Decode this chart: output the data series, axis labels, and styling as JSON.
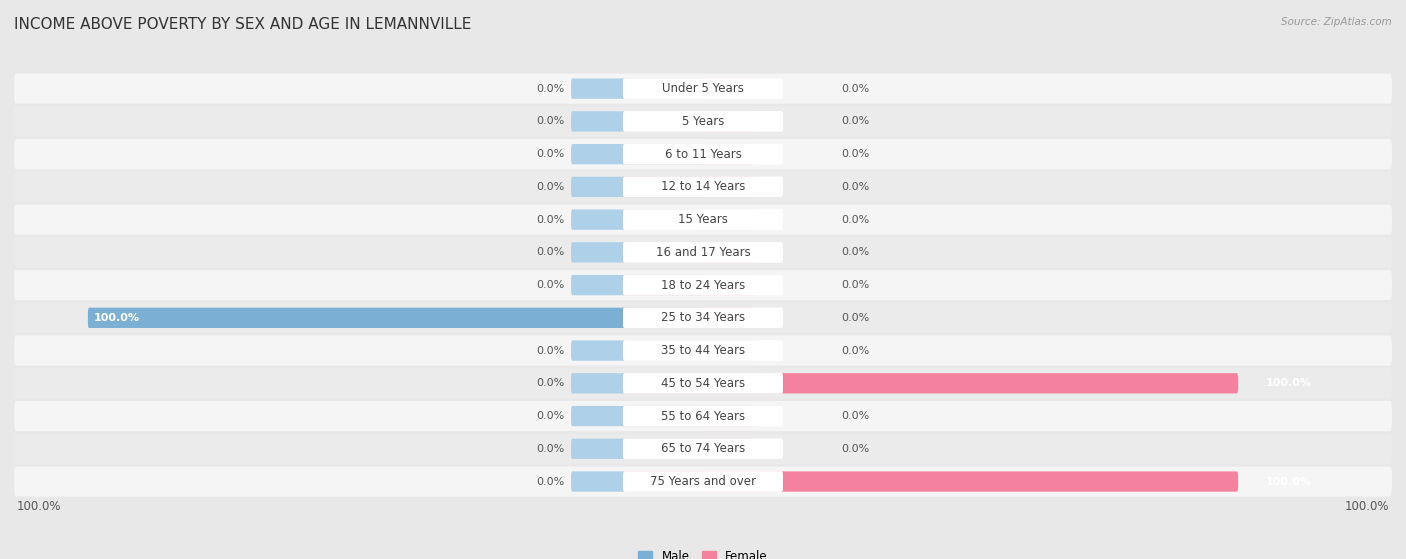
{
  "title": "INCOME ABOVE POVERTY BY SEX AND AGE IN LEMANNVILLE",
  "source": "Source: ZipAtlas.com",
  "categories": [
    "Under 5 Years",
    "5 Years",
    "6 to 11 Years",
    "12 to 14 Years",
    "15 Years",
    "16 and 17 Years",
    "18 to 24 Years",
    "25 to 34 Years",
    "35 to 44 Years",
    "45 to 54 Years",
    "55 to 64 Years",
    "65 to 74 Years",
    "75 Years and over"
  ],
  "male_values": [
    0.0,
    0.0,
    0.0,
    0.0,
    0.0,
    0.0,
    0.0,
    100.0,
    0.0,
    0.0,
    0.0,
    0.0,
    0.0
  ],
  "female_values": [
    0.0,
    0.0,
    0.0,
    0.0,
    0.0,
    0.0,
    0.0,
    0.0,
    0.0,
    100.0,
    0.0,
    0.0,
    100.0
  ],
  "male_color": "#7bafd4",
  "male_color_light": "#aed0e8",
  "female_color": "#f4829e",
  "female_color_light": "#f8b4c8",
  "male_label": "Male",
  "female_label": "Female",
  "bg_color": "#e8e8e8",
  "row_bg_even": "#f5f5f5",
  "row_bg_odd": "#ebebeb",
  "bar_max": 100.0,
  "title_fontsize": 11,
  "label_fontsize": 8.5,
  "value_fontsize": 8,
  "axis_label_fontsize": 8.5
}
